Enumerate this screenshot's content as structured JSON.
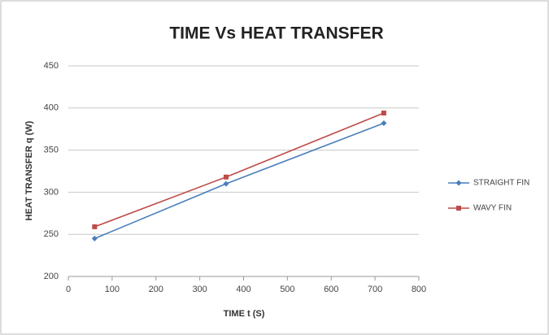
{
  "chart_data": {
    "type": "line",
    "title": "TIME Vs HEAT TRANSFER",
    "x_label": "TIME  t (S)",
    "y_label": "HEAT TRANSFER q (W)",
    "x": [
      60,
      360,
      720
    ],
    "series": [
      {
        "name": "STRAIGHT FIN",
        "color": "#4a7ebb",
        "values": [
          245,
          310,
          382
        ]
      },
      {
        "name": "WAVY FIN",
        "color": "#be4b48",
        "values": [
          259,
          318,
          394
        ]
      }
    ],
    "xlim": [
      0,
      800
    ],
    "xticks": [
      0,
      100,
      200,
      300,
      400,
      500,
      600,
      700,
      800
    ],
    "ylim": [
      200,
      450
    ],
    "yticks": [
      200,
      250,
      300,
      350,
      400,
      450
    ],
    "grid": true,
    "legend": "right"
  }
}
